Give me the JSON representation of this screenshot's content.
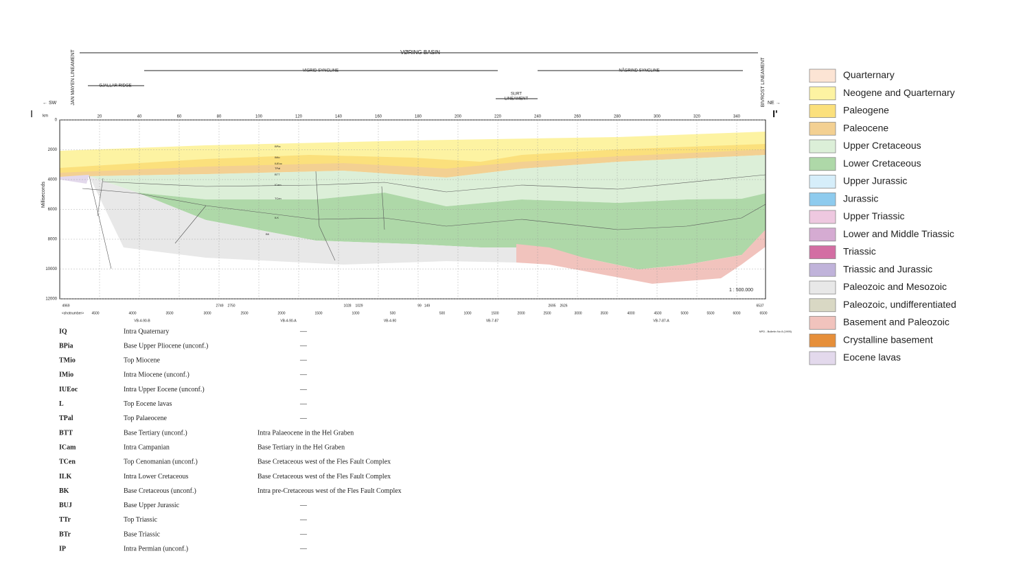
{
  "header": {
    "basin": "VØRING BASIN",
    "vigrid": "VIGRID SYNCLINE",
    "nagrind": "NÅGRIND SYNCLINE",
    "gjallar": "GJALLAR RIDGE",
    "surt": [
      "SURT",
      "LINEAMENT"
    ],
    "jan_mayen": "JAN MAYEN LINEAMENT",
    "bivrost": "BIVROST LINEAMENT",
    "sw": "← SW",
    "ne": "NE →",
    "start": "I",
    "end": "I'"
  },
  "section": {
    "km_label": "km",
    "km_ticks": [
      20,
      40,
      60,
      80,
      100,
      120,
      140,
      160,
      180,
      200,
      220,
      240,
      260,
      280,
      300,
      320,
      340
    ],
    "depth_label": "Milliseconds",
    "depth_ticks": [
      0,
      2000,
      4000,
      6000,
      8000,
      10000,
      12000
    ],
    "scale": "1 : 500.000",
    "source": "NPD - Bulletin No 8 (1995)",
    "horizon_labels": [
      "BPia",
      "IMio",
      "IUEoc",
      "TPal",
      "BTT",
      "ICam",
      "TCen",
      "ILK",
      "BK"
    ],
    "shot_top": [
      4969,
      2749,
      2750,
      1028,
      1029,
      99,
      149,
      2695,
      2626,
      6537
    ],
    "shot_bottom": [
      "<shotnumber>",
      4500,
      4000,
      3500,
      3000,
      2500,
      2000,
      1500,
      1000,
      500,
      500,
      1000,
      1500,
      2000,
      2500,
      3000,
      3500,
      4000,
      4500,
      5000,
      5500,
      6000,
      6500
    ],
    "lines": [
      "VB-4-90-B",
      "VB-4-90-A",
      "VB-4-90",
      "VB-7-87",
      "VB-7-87-A"
    ]
  },
  "legend": [
    {
      "label": "Quarternary",
      "color": "#fce4d4"
    },
    {
      "label": "Neogene and Quarternary",
      "color": "#fdf3a2"
    },
    {
      "label": "Paleogene",
      "color": "#fbe07c"
    },
    {
      "label": "Paleocene",
      "color": "#f3d092"
    },
    {
      "label": "Upper Cretaceous",
      "color": "#dcefd8"
    },
    {
      "label": "Lower Cretaceous",
      "color": "#aed8a8"
    },
    {
      "label": "Upper Jurassic",
      "color": "#d6eefa"
    },
    {
      "label": "Jurassic",
      "color": "#8ecbee"
    },
    {
      "label": "Upper Triassic",
      "color": "#eec8e0"
    },
    {
      "label": "Lower and Middle Triassic",
      "color": "#d5abd2"
    },
    {
      "label": "Triassic",
      "color": "#d36ea3"
    },
    {
      "label": "Triassic and Jurassic",
      "color": "#c0b3da"
    },
    {
      "label": "Paleozoic and Mesozoic",
      "color": "#e8e8e8"
    },
    {
      "label": "Paleozoic, undifferentiated",
      "color": "#d9d8c4"
    },
    {
      "label": "Basement and Paleozoic",
      "color": "#f1c3bd"
    },
    {
      "label": "Crystalline basement",
      "color": "#e68f3a"
    },
    {
      "label": "Eocene lavas",
      "color": "#e3d9ec"
    }
  ],
  "table": {
    "rows": [
      [
        "IQ",
        "Intra Quaternary",
        "—"
      ],
      [
        "BPia",
        "Base Upper Pliocene (unconf.)",
        "—"
      ],
      [
        "TMio",
        "Top Miocene",
        "—"
      ],
      [
        "IMio",
        "Intra Miocene (unconf.)",
        "—"
      ],
      [
        "IUEoc",
        "Intra Upper Eocene (unconf.)",
        "—"
      ],
      [
        "L",
        "Top Eocene lavas",
        "—"
      ],
      [
        "TPal",
        "Top Palaeocene",
        "—"
      ],
      [
        "BTT",
        "Base Tertiary (unconf.)",
        "Intra Palaeocene in the Hel Graben"
      ],
      [
        "ICam",
        "Intra Campanian",
        "Base Tertiary in the Hel Graben"
      ],
      [
        "TCen",
        "Top Cenomanian (unconf.)",
        "Base Cretaceous west of the Fles Fault Complex"
      ],
      [
        "ILK",
        "Intra Lower Cretaceous",
        "Base Cretaceous west of the Fles Fault Complex"
      ],
      [
        "BK",
        "Base Cretaceous (unconf.)",
        "Intra pre-Cretaceous west of the Fles Fault Complex"
      ],
      [
        "BUJ",
        "Base Upper Jurassic",
        "—"
      ],
      [
        "TTr",
        "Top Triassic",
        "—"
      ],
      [
        "BTr",
        "Base Triassic",
        "—"
      ],
      [
        "IP",
        "Intra Permian (unconf.)",
        "—"
      ]
    ]
  }
}
